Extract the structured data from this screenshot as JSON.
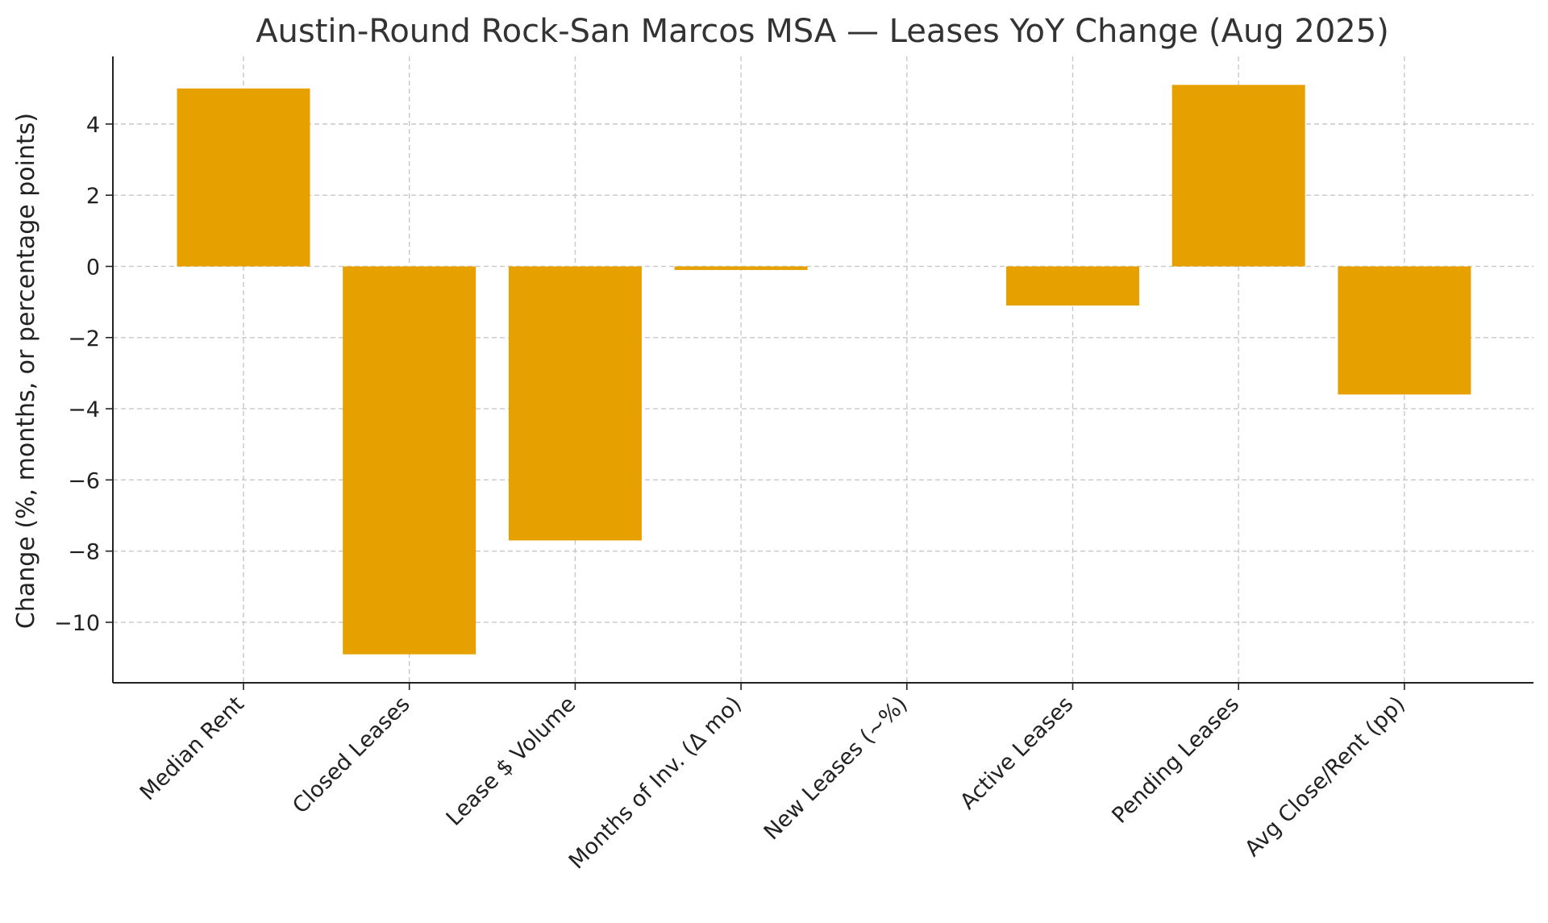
{
  "chart_data": {
    "type": "bar",
    "title": "Austin-Round Rock-San Marcos MSA — Leases YoY Change (Aug 2025)",
    "xlabel": "",
    "ylabel": "Change (%, months, or percentage points)",
    "categories": [
      "Median Rent",
      "Closed Leases",
      "Lease $ Volume",
      "Months of Inv. (Δ mo)",
      "New Leases (~%)",
      "Active Leases",
      "Pending Leases",
      "Avg Close/Rent (pp)"
    ],
    "values": [
      5.0,
      -10.9,
      -7.7,
      -0.1,
      0.0,
      -1.1,
      5.1,
      -3.6
    ],
    "ylim": [
      -11.7,
      5.9
    ],
    "yticks": [
      4,
      2,
      0,
      -2,
      -4,
      -6,
      -8,
      -10
    ],
    "ytick_labels": [
      "4",
      "2",
      "0",
      "−2",
      "−4",
      "−6",
      "−8",
      "−10"
    ],
    "grid": true,
    "bar_color": "#e6a000"
  }
}
